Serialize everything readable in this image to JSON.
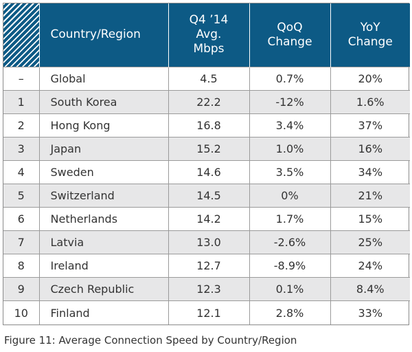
{
  "chart_data": {
    "type": "table",
    "columns": [
      "",
      "Country/Region",
      "Q4 '14 Avg. Mbps",
      "QoQ Change",
      "YoY Change"
    ],
    "header": {
      "country": "Country/Region",
      "speed": [
        "Q4 ’14",
        "Avg.",
        "Mbps"
      ],
      "qoq": [
        "QoQ",
        "Change"
      ],
      "yoy": [
        "YoY",
        "Change"
      ]
    },
    "rows": [
      {
        "rank": "–",
        "country": "Global",
        "speed": "4.5",
        "qoq": "0.7%",
        "yoy": "20%"
      },
      {
        "rank": "1",
        "country": "South Korea",
        "speed": "22.2",
        "qoq": "-12%",
        "yoy": "1.6%"
      },
      {
        "rank": "2",
        "country": "Hong Kong",
        "speed": "16.8",
        "qoq": "3.4%",
        "yoy": "37%"
      },
      {
        "rank": "3",
        "country": "Japan",
        "speed": "15.2",
        "qoq": "1.0%",
        "yoy": "16%"
      },
      {
        "rank": "4",
        "country": "Sweden",
        "speed": "14.6",
        "qoq": "3.5%",
        "yoy": "34%"
      },
      {
        "rank": "5",
        "country": "Switzerland",
        "speed": "14.5",
        "qoq": "0%",
        "yoy": "21%"
      },
      {
        "rank": "6",
        "country": "Netherlands",
        "speed": "14.2",
        "qoq": "1.7%",
        "yoy": "15%"
      },
      {
        "rank": "7",
        "country": "Latvia",
        "speed": "13.0",
        "qoq": "-2.6%",
        "yoy": "25%"
      },
      {
        "rank": "8",
        "country": "Ireland",
        "speed": "12.7",
        "qoq": "-8.9%",
        "yoy": "24%"
      },
      {
        "rank": "9",
        "country": "Czech Republic",
        "speed": "12.3",
        "qoq": "0.1%",
        "yoy": "8.4%"
      },
      {
        "rank": "10",
        "country": "Finland",
        "speed": "12.1",
        "qoq": "2.8%",
        "yoy": "33%"
      }
    ],
    "caption": "Figure 11: Average Connection Speed by Country/Region",
    "colors": {
      "header_bg": "#0d5a85",
      "header_text": "#ffffff",
      "alt_row_bg": "#e7e7e8",
      "text": "#333333"
    }
  }
}
